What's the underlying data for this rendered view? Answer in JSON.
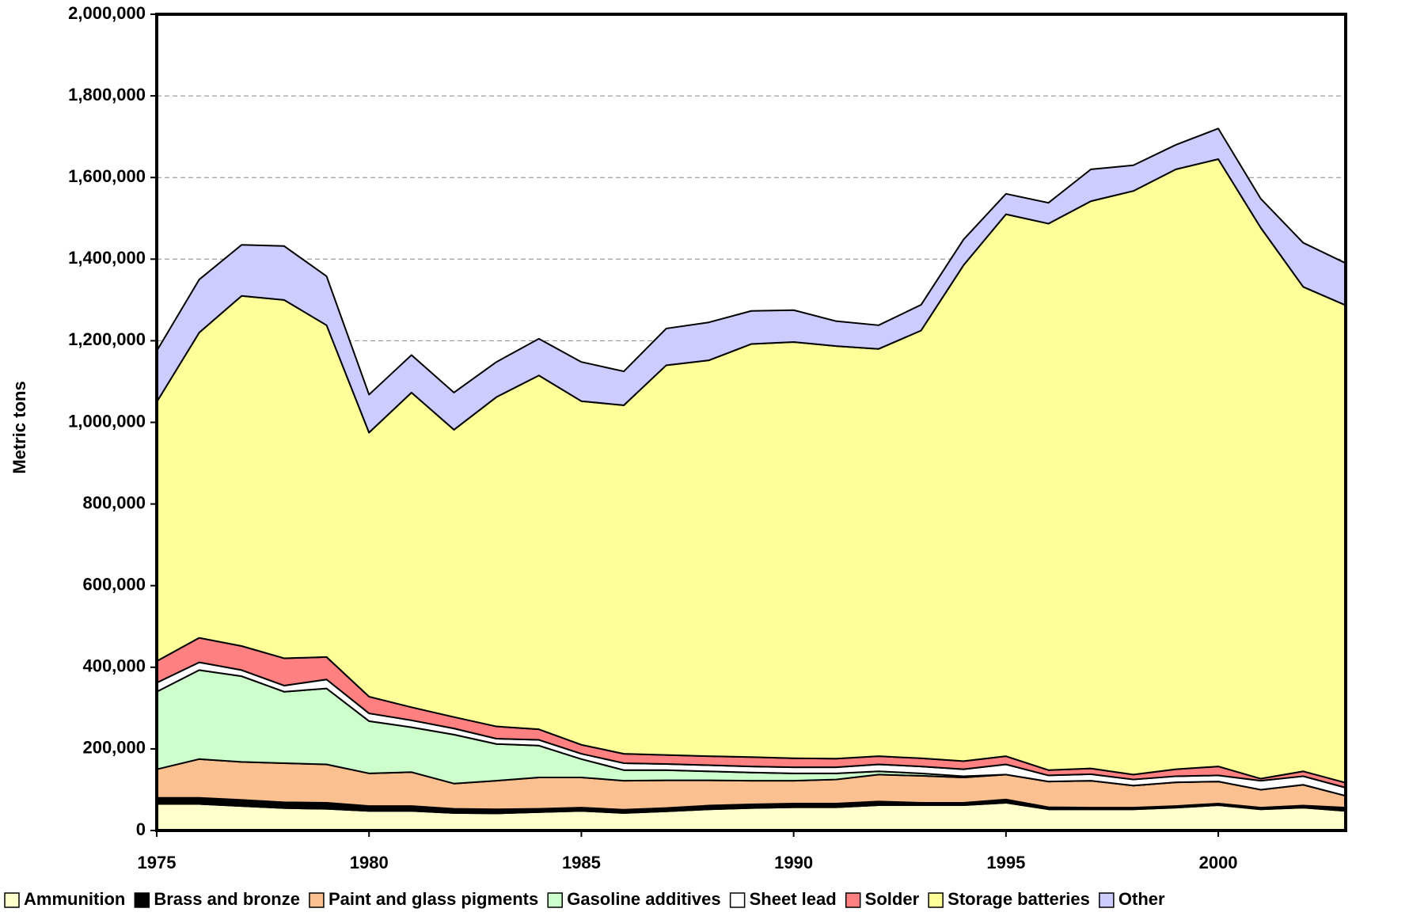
{
  "chart_data": {
    "type": "stacked_area",
    "y_label": "Metric tons",
    "x": [
      1975,
      1976,
      1977,
      1978,
      1979,
      1980,
      1981,
      1982,
      1983,
      1984,
      1985,
      1986,
      1987,
      1988,
      1989,
      1990,
      1991,
      1992,
      1993,
      1994,
      1995,
      1996,
      1997,
      1998,
      1999,
      2000,
      2001,
      2002,
      2003
    ],
    "xlim": [
      1975,
      2003
    ],
    "xticks": [
      1975,
      1980,
      1985,
      1990,
      1995,
      2000
    ],
    "ylim": [
      0,
      2000000
    ],
    "yticks": [
      0,
      {
        "value": 200000,
        "label": "200,000"
      },
      {
        "value": 400000,
        "label": "400,000"
      },
      {
        "value": 600000,
        "label": "600,000"
      },
      {
        "value": 800000,
        "label": "800,000"
      },
      {
        "value": 1000000,
        "label": "1,000,000"
      },
      {
        "value": 1200000,
        "label": "1,200,000"
      },
      {
        "value": 1400000,
        "label": "1,400,000"
      },
      {
        "value": 1600000,
        "label": "1,600,000"
      },
      {
        "value": 1800000,
        "label": "1,800,000"
      },
      {
        "value": 2000000,
        "label": "2,000,000"
      }
    ],
    "grid": true,
    "legend": "bottom",
    "series": [
      {
        "name": "Ammunition",
        "color": "#ffffcc",
        "values": [
          65000,
          65000,
          60000,
          55000,
          53000,
          48000,
          48000,
          43000,
          42000,
          45000,
          48000,
          43000,
          47000,
          52000,
          55000,
          57000,
          57000,
          62000,
          62000,
          62000,
          68000,
          52000,
          52000,
          52000,
          56000,
          62000,
          52000,
          56000,
          48000
        ]
      },
      {
        "name": "Brass and bronze",
        "color": "#000000",
        "values": [
          15000,
          15000,
          15000,
          14000,
          15000,
          12000,
          12000,
          10000,
          10000,
          8000,
          8000,
          8000,
          8000,
          9000,
          9000,
          9000,
          9000,
          9000,
          6000,
          6000,
          8000,
          5000,
          4000,
          4000,
          4000,
          4000,
          4000,
          5000,
          8000
        ]
      },
      {
        "name": "Paint and glass pigments",
        "color": "#fac090",
        "values": [
          70000,
          95000,
          93000,
          96000,
          94000,
          80000,
          83000,
          62000,
          70000,
          77000,
          74000,
          71000,
          68000,
          62000,
          58000,
          56000,
          59000,
          66000,
          66000,
          62000,
          61000,
          63000,
          66000,
          54000,
          58000,
          54000,
          44000,
          51000,
          29000
        ]
      },
      {
        "name": "Gasoline additives",
        "color": "#ccffcc",
        "values": [
          190000,
          218000,
          210000,
          175000,
          186000,
          128000,
          110000,
          120000,
          90000,
          78000,
          45000,
          26000,
          25000,
          22000,
          20000,
          18000,
          15000,
          8000,
          6000,
          3000,
          0,
          0,
          0,
          0,
          0,
          0,
          0,
          0,
          0
        ]
      },
      {
        "name": "Sheet lead",
        "color": "#ffffff",
        "values": [
          22000,
          19000,
          15000,
          15000,
          22000,
          19000,
          17000,
          15000,
          13000,
          14000,
          13000,
          17000,
          15000,
          15000,
          15000,
          15000,
          15000,
          17000,
          17000,
          17000,
          25000,
          15000,
          16000,
          15000,
          15000,
          15000,
          22000,
          21000,
          20000
        ]
      },
      {
        "name": "Solder",
        "color": "#ff8080",
        "values": [
          53000,
          60000,
          59000,
          67000,
          55000,
          41000,
          32000,
          28000,
          30000,
          26000,
          22000,
          23000,
          22000,
          22000,
          23000,
          22000,
          21000,
          20000,
          20000,
          20000,
          20000,
          13000,
          14000,
          12000,
          17000,
          22000,
          5000,
          12000,
          12000
        ]
      },
      {
        "name": "Storage batteries",
        "color": "#ffff99",
        "values": [
          635000,
          748000,
          858000,
          878000,
          813000,
          647000,
          771000,
          704000,
          807000,
          867000,
          842000,
          854000,
          955000,
          970000,
          1012000,
          1020000,
          1011000,
          998000,
          1048000,
          1215000,
          1328000,
          1339000,
          1390000,
          1430000,
          1470000,
          1488000,
          1350000,
          1187000,
          1170000
        ]
      },
      {
        "name": "Other",
        "color": "#ccccff",
        "values": [
          125000,
          130000,
          125000,
          132000,
          120000,
          93000,
          92000,
          91000,
          86000,
          90000,
          96000,
          83000,
          90000,
          93000,
          81000,
          78000,
          61000,
          58000,
          63000,
          63000,
          50000,
          51000,
          78000,
          63000,
          60000,
          75000,
          71000,
          108000,
          103000
        ]
      }
    ]
  }
}
